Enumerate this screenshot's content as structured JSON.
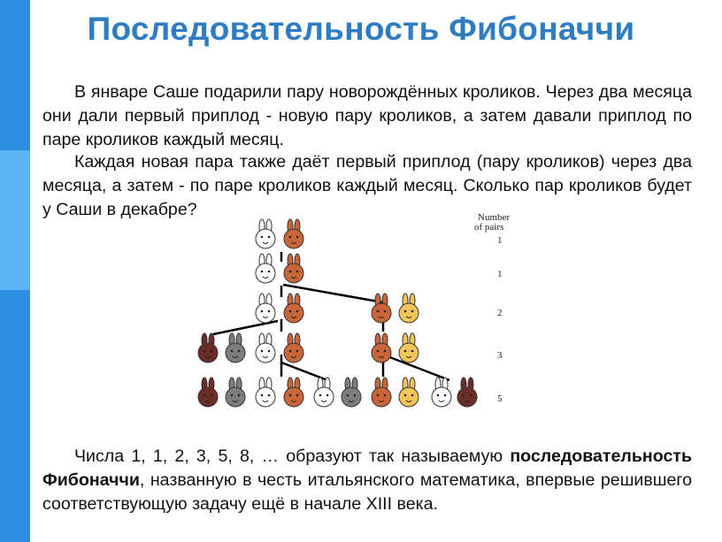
{
  "slide": {
    "title": "Последовательность Фибоначчи",
    "paragraph1": "В январе Саше подарили пару новорождённых кроликов. Через два месяца они дали первый приплод - новую пару кроликов, а затем давали приплод по паре кроликов каждый месяц.",
    "paragraph2": "Каждая новая пара также даёт первый приплод (пару кроликов) через два месяца, а затем - по паре кроликов каждый месяц. Сколько пар кроликов будет у Саши в декабре?",
    "paragraph3_before": "Числа 1, 1, 2, 3, 5, 8, … образуют так называемую ",
    "paragraph3_bold": "последовательность Фибоначчи",
    "paragraph3_after": ", названную в честь итальянского математика, впервые решившего соответствующую задачу ещё в начале XIII века."
  },
  "figure": {
    "header_line1": "Number",
    "header_line2": "of pairs",
    "counts": [
      "1",
      "1",
      "2",
      "3",
      "5"
    ],
    "colors": {
      "white": "#ffffff",
      "orange": "#c8663a",
      "gray": "#7d7d7d",
      "darkbrown": "#6a2e26",
      "yellow": "#f2c55a"
    }
  }
}
